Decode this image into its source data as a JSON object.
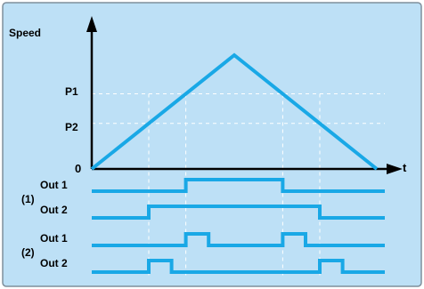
{
  "colors": {
    "background": "#bde0f6",
    "frame": "#7f8f9c",
    "signal": "#19a8e6",
    "guide": "#ffffff",
    "axis": "#000000"
  },
  "axes": {
    "y_label": "Speed",
    "x_label": "t",
    "origin_label": "0",
    "levels": [
      {
        "label": "P1"
      },
      {
        "label": "P2"
      }
    ]
  },
  "groups": [
    {
      "label": "(1)",
      "signals": [
        {
          "label": "Out 1"
        },
        {
          "label": "Out 2"
        }
      ]
    },
    {
      "label": "(2)",
      "signals": [
        {
          "label": "Out 1"
        },
        {
          "label": "Out 2"
        }
      ]
    }
  ],
  "chart_data": {
    "type": "timing-diagram",
    "speed_profile": [
      [
        0,
        0
      ],
      [
        1,
        1
      ],
      [
        2,
        0
      ]
    ],
    "levels": {
      "P1": 0.66,
      "P2": 0.4
    },
    "transition_times": [
      0.4,
      0.66,
      1.34,
      1.6
    ],
    "pulse_width": 0.16,
    "signals": [
      {
        "group": "(1)",
        "name": "Out 1",
        "high_intervals": [
          [
            0.66,
            1.34
          ]
        ]
      },
      {
        "group": "(1)",
        "name": "Out 2",
        "high_intervals": [
          [
            0.4,
            1.6
          ]
        ]
      },
      {
        "group": "(2)",
        "name": "Out 1",
        "high_intervals": [
          [
            0.66,
            0.82
          ],
          [
            1.34,
            1.5
          ]
        ]
      },
      {
        "group": "(2)",
        "name": "Out 2",
        "high_intervals": [
          [
            0.4,
            0.56
          ],
          [
            1.6,
            1.76
          ]
        ]
      }
    ]
  }
}
